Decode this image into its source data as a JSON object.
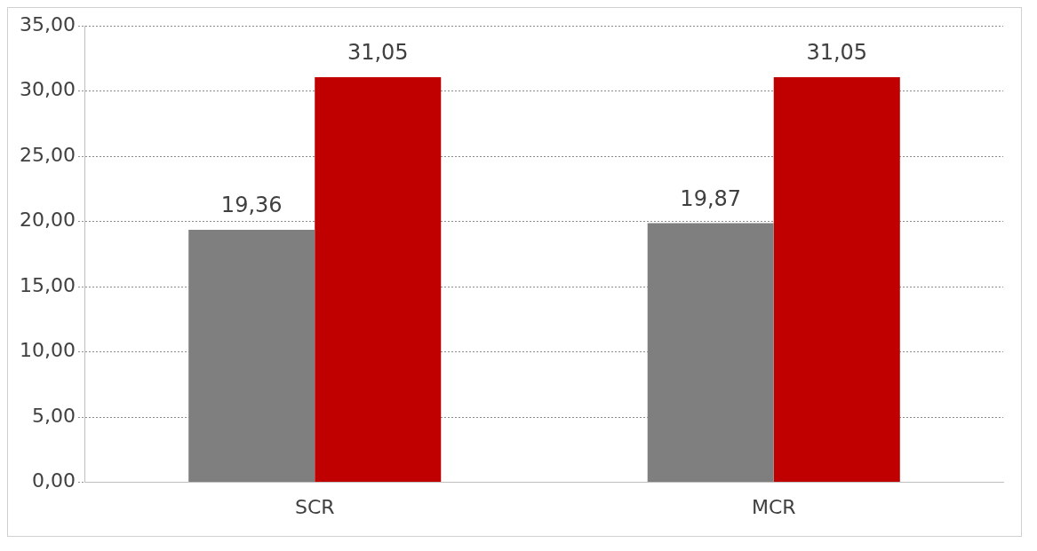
{
  "chart_data": {
    "type": "bar",
    "categories": [
      "SCR",
      "MCR"
    ],
    "series": [
      {
        "color": "#7f7f7f",
        "values": [
          19.36,
          19.87
        ],
        "value_labels": [
          "19,36",
          "19,87"
        ]
      },
      {
        "color": "#c00000",
        "values": [
          31.05,
          31.05
        ],
        "value_labels": [
          "31,05",
          "31,05"
        ]
      }
    ],
    "ylim": [
      0,
      35
    ],
    "yticks": [
      {
        "value": 0,
        "label": "0,00"
      },
      {
        "value": 5,
        "label": "5,00"
      },
      {
        "value": 10,
        "label": "10,00"
      },
      {
        "value": 15,
        "label": "15,00"
      },
      {
        "value": 20,
        "label": "20,00"
      },
      {
        "value": 25,
        "label": "25,00"
      },
      {
        "value": 30,
        "label": "30,00"
      },
      {
        "value": 35,
        "label": "35,00"
      }
    ],
    "grid": "y",
    "legend": false
  }
}
